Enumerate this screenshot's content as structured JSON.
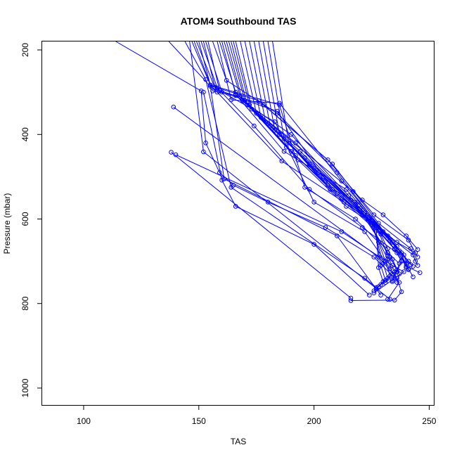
{
  "chart_data": {
    "type": "line",
    "title": "ATOM4 Southbound TAS",
    "xlabel": "TAS",
    "ylabel": "Pressure (mbar)",
    "xlim": [
      82,
      252
    ],
    "ylim": [
      1040,
      180
    ],
    "y_reversed": true,
    "x_ticks": [
      100,
      150,
      200,
      250
    ],
    "y_ticks": [
      200,
      400,
      600,
      800,
      1000
    ],
    "series_color": "#0000ff",
    "marker": "open-circle",
    "series": [
      {
        "points": [
          [
            114,
            180
          ],
          [
            151,
            297
          ],
          [
            153,
            420
          ],
          [
            159,
            490
          ],
          [
            165,
            520
          ],
          [
            180,
            560
          ],
          [
            205,
            620
          ],
          [
            226,
            690
          ],
          [
            237,
            750
          ],
          [
            232,
            790
          ]
        ]
      },
      {
        "points": [
          [
            139,
            335
          ],
          [
            228,
            690
          ],
          [
            236,
            740
          ],
          [
            238,
            772
          ],
          [
            235,
            792
          ],
          [
            216,
            793
          ]
        ]
      },
      {
        "points": [
          [
            138,
            442
          ],
          [
            216,
            787
          ]
        ]
      },
      {
        "points": [
          [
            140,
            448
          ],
          [
            212,
            630
          ],
          [
            234,
            710
          ],
          [
            239,
            725
          ],
          [
            226,
            775
          ]
        ]
      },
      {
        "points": [
          [
            152,
            300
          ],
          [
            160,
            508
          ],
          [
            166,
            570
          ],
          [
            200,
            660
          ],
          [
            224,
            780
          ]
        ]
      },
      {
        "points": [
          [
            137,
            180
          ],
          [
            155,
            286
          ],
          [
            161,
            505
          ],
          [
            210,
            640
          ],
          [
            229,
            780
          ]
        ]
      },
      {
        "points": [
          [
            144,
            180
          ],
          [
            153,
            270
          ],
          [
            164,
            525
          ],
          [
            222,
            740
          ],
          [
            227,
            762
          ]
        ]
      },
      {
        "points": [
          [
            146,
            180
          ],
          [
            152,
            441
          ],
          [
            233,
            790
          ]
        ]
      },
      {
        "points": [
          [
            148,
            180
          ],
          [
            156,
            297
          ],
          [
            166,
            308
          ],
          [
            217,
            535
          ],
          [
            221,
            555
          ],
          [
            230,
            590
          ],
          [
            240,
            640
          ],
          [
            245,
            672
          ]
        ]
      },
      {
        "points": [
          [
            150,
            180
          ],
          [
            155,
            283
          ],
          [
            158,
            300
          ],
          [
            186,
            463
          ],
          [
            224,
            600
          ],
          [
            236,
            655
          ],
          [
            244,
            680
          ]
        ]
      },
      {
        "points": [
          [
            152,
            180
          ],
          [
            157,
            288
          ],
          [
            176,
            320
          ],
          [
            206,
            460
          ],
          [
            226,
            590
          ],
          [
            241,
            650
          ],
          [
            245,
            690
          ]
        ]
      },
      {
        "points": [
          [
            154,
            180
          ],
          [
            159,
            296
          ],
          [
            178,
            330
          ],
          [
            208,
            470
          ],
          [
            228,
            610
          ],
          [
            242,
            670
          ],
          [
            244,
            700
          ]
        ]
      },
      {
        "points": [
          [
            156,
            180
          ],
          [
            162,
            272
          ],
          [
            184,
            350
          ],
          [
            210,
            490
          ],
          [
            230,
            630
          ],
          [
            243,
            685
          ],
          [
            245,
            710
          ]
        ]
      },
      {
        "points": [
          [
            158,
            180
          ],
          [
            164,
            318
          ],
          [
            185,
            326
          ],
          [
            212,
            510
          ],
          [
            232,
            640
          ],
          [
            241,
            700
          ],
          [
            243,
            712
          ]
        ]
      },
      {
        "points": [
          [
            160,
            180
          ],
          [
            166,
            305
          ],
          [
            187,
            440
          ],
          [
            214,
            530
          ],
          [
            234,
            655
          ],
          [
            240,
            712
          ],
          [
            246,
            727
          ]
        ]
      },
      {
        "points": [
          [
            162,
            180
          ],
          [
            169,
            320
          ],
          [
            190,
            400
          ],
          [
            215,
            545
          ],
          [
            236,
            665
          ],
          [
            241,
            718
          ],
          [
            243,
            737
          ]
        ]
      },
      {
        "points": [
          [
            164,
            180
          ],
          [
            171,
            330
          ],
          [
            192,
            420
          ],
          [
            216,
            555
          ],
          [
            235,
            672
          ],
          [
            238,
            700
          ],
          [
            236,
            725
          ]
        ]
      },
      {
        "points": [
          [
            166,
            180
          ],
          [
            173,
            340
          ],
          [
            194,
            440
          ],
          [
            218,
            565
          ],
          [
            232,
            680
          ],
          [
            237,
            705
          ],
          [
            235,
            740
          ]
        ]
      },
      {
        "points": [
          [
            168,
            180
          ],
          [
            175,
            350
          ],
          [
            196,
            455
          ],
          [
            220,
            575
          ],
          [
            233,
            690
          ],
          [
            236,
            720
          ],
          [
            234,
            745
          ]
        ]
      },
      {
        "points": [
          [
            170,
            180
          ],
          [
            177,
            360
          ],
          [
            198,
            470
          ],
          [
            222,
            585
          ],
          [
            232,
            695
          ],
          [
            234,
            730
          ],
          [
            231,
            750
          ]
        ]
      },
      {
        "points": [
          [
            172,
            180
          ],
          [
            179,
            370
          ],
          [
            200,
            480
          ],
          [
            224,
            595
          ],
          [
            231,
            700
          ],
          [
            233,
            735
          ],
          [
            229,
            755
          ]
        ]
      },
      {
        "points": [
          [
            174,
            180
          ],
          [
            181,
            380
          ],
          [
            202,
            490
          ],
          [
            225,
            605
          ],
          [
            230,
            705
          ],
          [
            232,
            740
          ],
          [
            228,
            760
          ]
        ]
      },
      {
        "points": [
          [
            176,
            180
          ],
          [
            183,
            390
          ],
          [
            204,
            500
          ],
          [
            226,
            612
          ],
          [
            229,
            710
          ],
          [
            231,
            745
          ],
          [
            227,
            765
          ]
        ]
      },
      {
        "points": [
          [
            178,
            180
          ],
          [
            185,
            400
          ],
          [
            205,
            510
          ],
          [
            227,
            620
          ],
          [
            228,
            715
          ],
          [
            230,
            748
          ],
          [
            226,
            770
          ]
        ]
      },
      {
        "points": [
          [
            180,
            180
          ],
          [
            187,
            410
          ],
          [
            206,
            520
          ],
          [
            228,
            628
          ],
          [
            232,
            688
          ],
          [
            235,
            725
          ],
          [
            234,
            748
          ]
        ]
      },
      {
        "points": [
          [
            182,
            180
          ],
          [
            189,
            420
          ],
          [
            207,
            530
          ],
          [
            229,
            636
          ],
          [
            234,
            695
          ],
          [
            237,
            730
          ],
          [
            236,
            750
          ]
        ]
      },
      {
        "points": [
          [
            159,
            180
          ],
          [
            166,
            300
          ],
          [
            188,
            430
          ],
          [
            210,
            540
          ],
          [
            222,
            590
          ],
          [
            235,
            670
          ],
          [
            240,
            705
          ]
        ]
      },
      {
        "points": [
          [
            161,
            180
          ],
          [
            168,
            310
          ],
          [
            190,
            440
          ],
          [
            212,
            550
          ],
          [
            224,
            600
          ],
          [
            237,
            675
          ],
          [
            242,
            708
          ]
        ]
      },
      {
        "points": [
          [
            163,
            180
          ],
          [
            170,
            320
          ],
          [
            192,
            450
          ],
          [
            213,
            560
          ],
          [
            226,
            610
          ],
          [
            238,
            680
          ],
          [
            240,
            715
          ]
        ]
      },
      {
        "points": [
          [
            165,
            180
          ],
          [
            172,
            330
          ],
          [
            193,
            460
          ],
          [
            214,
            570
          ],
          [
            228,
            620
          ],
          [
            239,
            685
          ],
          [
            241,
            720
          ]
        ]
      },
      {
        "points": [
          [
            153,
            180
          ],
          [
            160,
            300
          ],
          [
            184,
            345
          ],
          [
            208,
            530
          ],
          [
            219,
            560
          ],
          [
            230,
            630
          ],
          [
            233,
            650
          ]
        ]
      },
      {
        "points": [
          [
            151,
            180
          ],
          [
            158,
            290
          ],
          [
            174,
            380
          ],
          [
            198,
            530
          ],
          [
            221,
            620
          ],
          [
            236,
            680
          ],
          [
            238,
            698
          ]
        ]
      },
      {
        "points": [
          [
            149,
            180
          ],
          [
            157,
            290
          ],
          [
            183,
            370
          ],
          [
            200,
            560
          ],
          [
            222,
            630
          ],
          [
            231,
            700
          ],
          [
            233,
            718
          ]
        ]
      },
      {
        "points": [
          [
            147,
            180
          ],
          [
            155,
            283
          ],
          [
            185,
            330
          ],
          [
            196,
            525
          ],
          [
            218,
            600
          ],
          [
            228,
            655
          ],
          [
            232,
            670
          ]
        ]
      }
    ]
  }
}
